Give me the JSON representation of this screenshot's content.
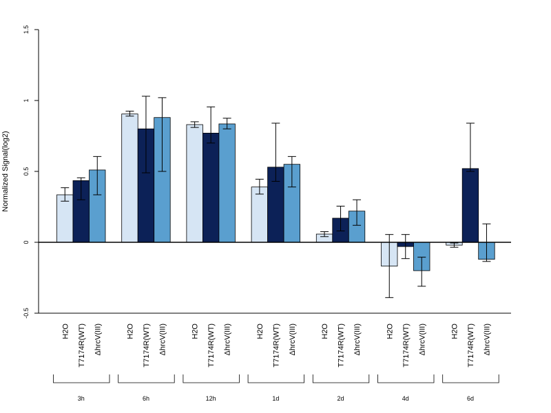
{
  "chart_data": {
    "type": "bar",
    "title": "",
    "xlabel": "",
    "ylabel": "Normalized Signal(log2)",
    "ylim": [
      -0.5,
      1.5
    ],
    "yticks": [
      -0.5,
      0,
      0.5,
      1,
      1.5
    ],
    "ytick_labels": [
      "-0.5",
      "0",
      "0.5",
      "1",
      "1.5"
    ],
    "grid": false,
    "legend": "none",
    "groups": [
      "3h",
      "6h",
      "12h",
      "1d",
      "2d",
      "4d",
      "6d"
    ],
    "bar_labels": [
      "H2O",
      "T7174R(WT)",
      "ΔhrcV(III)"
    ],
    "colors": [
      "#d6e5f4",
      "#0c2157",
      "#5a9fcf"
    ],
    "series": [
      {
        "values": [
          0.335,
          0.905,
          0.83,
          0.39,
          0.058,
          -0.168,
          -0.02
        ],
        "err_low": [
          0.29,
          0.89,
          0.81,
          0.34,
          0.04,
          -0.39,
          -0.035
        ],
        "err_high": [
          0.385,
          0.925,
          0.85,
          0.445,
          0.075,
          0.055,
          -0.005
        ]
      },
      {
        "values": [
          0.435,
          0.8,
          0.77,
          0.53,
          0.17,
          -0.03,
          0.52
        ],
        "err_low": [
          0.3,
          0.49,
          0.7,
          0.43,
          0.08,
          -0.115,
          0.5
        ],
        "err_high": [
          0.455,
          1.03,
          0.955,
          0.84,
          0.255,
          0.055,
          0.84
        ]
      },
      {
        "values": [
          0.51,
          0.88,
          0.835,
          0.55,
          0.22,
          -0.2,
          -0.12
        ],
        "err_low": [
          0.335,
          0.5,
          0.8,
          0.39,
          0.12,
          -0.31,
          -0.135
        ],
        "err_high": [
          0.605,
          1.02,
          0.875,
          0.605,
          0.3,
          -0.105,
          0.13
        ]
      }
    ]
  }
}
